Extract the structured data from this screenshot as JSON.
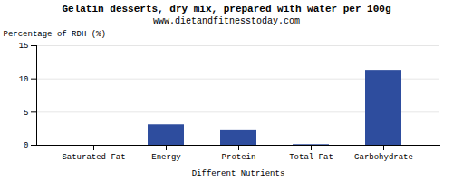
{
  "chart_data": {
    "type": "bar",
    "title": "Gelatin desserts, dry mix, prepared with water per 100g",
    "subtitle": "www.dietandfitnesstoday.com",
    "xlabel": "Different Nutrients",
    "ylabel": "Percentage of RDH (%)",
    "categories": [
      "Saturated Fat",
      "Energy",
      "Protein",
      "Total Fat",
      "Carbohydrate"
    ],
    "values": [
      0.0,
      3.1,
      2.2,
      0.1,
      11.3
    ],
    "color": "#2e4d9e",
    "ylim": [
      0,
      15
    ],
    "yticks": [
      0,
      5,
      10,
      15
    ],
    "grid": true
  }
}
